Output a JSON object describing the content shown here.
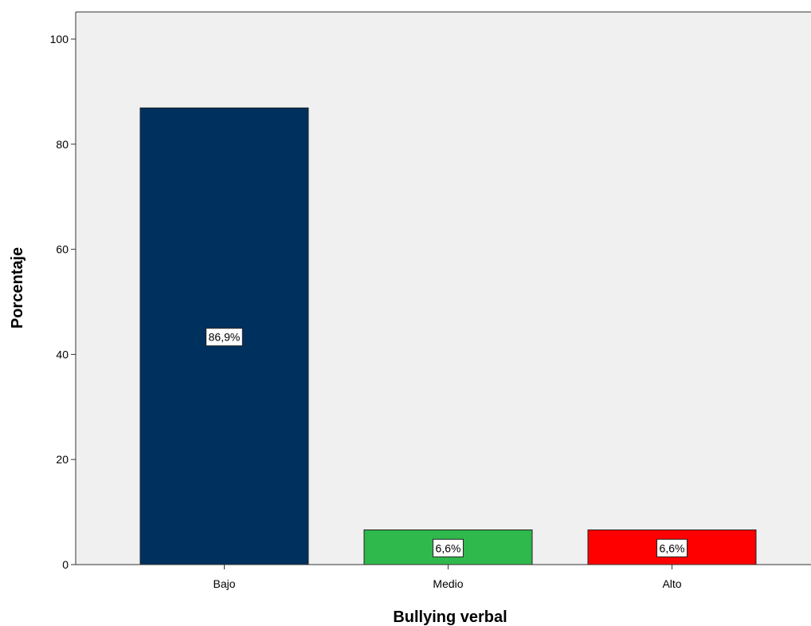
{
  "chart_data": {
    "type": "bar",
    "title": "",
    "xlabel": "Bullying verbal",
    "ylabel": "Porcentaje",
    "categories": [
      "Bajo",
      "Medio",
      "Alto"
    ],
    "values": [
      86.9,
      6.6,
      6.6
    ],
    "data_labels": [
      "86,9%",
      "6,6%",
      "6,6%"
    ],
    "colors": [
      "#00305e",
      "#2fb84b",
      "#ff0000"
    ],
    "ylim": [
      0,
      100
    ],
    "yticks": [
      0,
      20,
      40,
      60,
      80,
      100
    ],
    "ytick_labels": [
      "0",
      "20",
      "40",
      "60",
      "80",
      "100"
    ],
    "plot_background": "#f0f0f0",
    "grid": false,
    "legend": "none"
  }
}
